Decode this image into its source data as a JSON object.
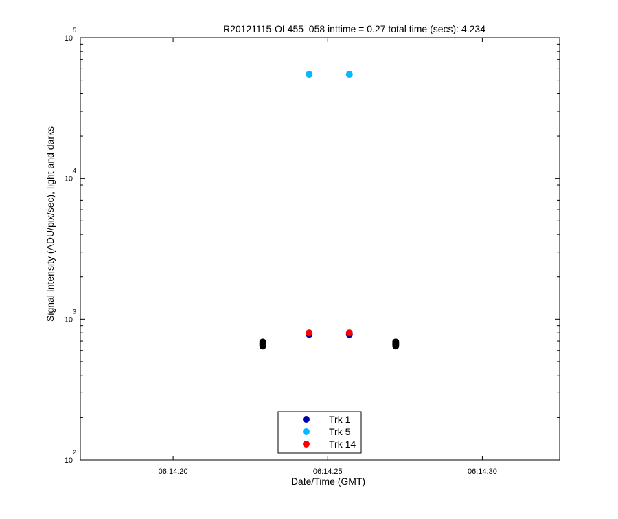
{
  "chart_data": {
    "type": "scatter",
    "title": "R20121115-OL455_058 inttime = 0.27 total time (secs): 4.234",
    "xlabel": "Date/Time (GMT)",
    "ylabel": "Signal Intensity (ADU/pix/sec), light and darks",
    "x_scale": "time",
    "y_scale": "log",
    "xlim": [
      "06:14:17.0",
      "06:14:32.5"
    ],
    "ylim": [
      100,
      100000
    ],
    "x_ticks": [
      "06:14:20",
      "06:14:25",
      "06:14:30"
    ],
    "y_ticks": [
      {
        "base": "10",
        "exp": "2",
        "value": 100
      },
      {
        "base": "10",
        "exp": "3",
        "value": 1000
      },
      {
        "base": "10",
        "exp": "4",
        "value": 10000
      },
      {
        "base": "10",
        "exp": "5",
        "value": 100000
      }
    ],
    "grid": false,
    "legend_position": "bottom-center",
    "series": [
      {
        "name": "Trk 1",
        "color": "#0000aa",
        "in_legend": true,
        "points": [
          {
            "x": "06:14:24.4",
            "y": 780
          },
          {
            "x": "06:14:25.7",
            "y": 780
          }
        ]
      },
      {
        "name": "Trk 5",
        "color": "#00bbff",
        "in_legend": true,
        "points": [
          {
            "x": "06:14:24.4",
            "y": 55000
          },
          {
            "x": "06:14:25.7",
            "y": 55000
          }
        ]
      },
      {
        "name": "Trk 14",
        "color": "#ff0000",
        "in_legend": true,
        "points": [
          {
            "x": "06:14:24.4",
            "y": 800
          },
          {
            "x": "06:14:25.7",
            "y": 800
          }
        ]
      },
      {
        "name": "",
        "color": "#000000",
        "in_legend": false,
        "points": [
          {
            "x": "06:14:22.9",
            "y": 645
          },
          {
            "x": "06:14:22.9",
            "y": 660
          },
          {
            "x": "06:14:22.9",
            "y": 675
          },
          {
            "x": "06:14:22.9",
            "y": 690
          },
          {
            "x": "06:14:27.2",
            "y": 645
          },
          {
            "x": "06:14:27.2",
            "y": 660
          },
          {
            "x": "06:14:27.2",
            "y": 675
          },
          {
            "x": "06:14:27.2",
            "y": 690
          }
        ]
      }
    ]
  }
}
